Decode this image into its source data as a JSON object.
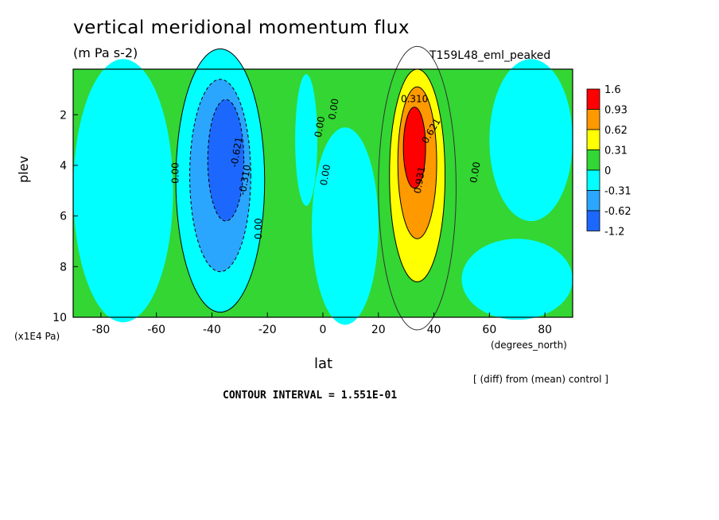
{
  "header": {
    "title": "vertical meridional momentum flux",
    "units": "(m Pa s-2)",
    "run": "T159L48_eml_peaked"
  },
  "footer": {
    "y_units": "(x1E4 Pa)",
    "x_units": "(degrees_north)",
    "note": "[ (diff) from (mean) control ]",
    "interval": "CONTOUR INTERVAL = 1.551E-01"
  },
  "chart_data": {
    "type": "heatmap",
    "title": "vertical meridional momentum flux",
    "xlabel": "lat",
    "ylabel": "plev",
    "xlim": [
      -90,
      90
    ],
    "ylim": [
      10,
      0.2
    ],
    "x_ticks": [
      -80,
      -60,
      -40,
      -20,
      0,
      20,
      40,
      60,
      80
    ],
    "y_ticks": [
      2,
      4,
      6,
      8,
      10
    ],
    "levels": [
      -1.2,
      -0.62,
      -0.31,
      0,
      0.31,
      0.62,
      0.93,
      1.6
    ],
    "colors": {
      "below_-0.62": "#1c68ff",
      "-0.62_to_-0.31": "#2ba6ff",
      "-0.31_to_0": "#00ffff",
      "0_to_0.31": "#33d633",
      "0.31_to_0.62": "#ffff00",
      "0.62_to_0.93": "#ff9900",
      "above_0.93": "#ff0000"
    },
    "legend_labels": [
      "1.6",
      "0.93",
      "0.62",
      "0.31",
      "0",
      "-0.31",
      "-0.62",
      "-1.2"
    ],
    "contour_labels": [
      "0.00",
      "0.00",
      "0.00",
      "0.00",
      "0.00",
      "0.00",
      "-0.621",
      "-0.310",
      "0.310",
      "0.621",
      "0.931"
    ],
    "features": [
      {
        "name": "southern negative cell",
        "center_lat": -35,
        "center_plev": 3.5,
        "min_value": -1.2
      },
      {
        "name": "northern positive cell",
        "center_lat": 33,
        "center_plev": 3.3,
        "max_value": 1.6
      }
    ],
    "legend_position": "right",
    "grid": false
  }
}
